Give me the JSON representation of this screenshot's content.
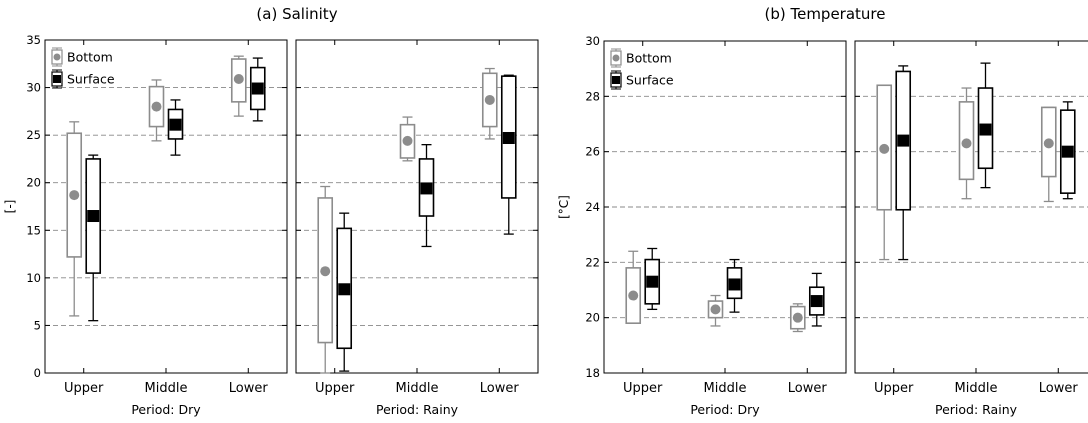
{
  "chart_data": [
    {
      "type": "box",
      "title": "(a) Salinity",
      "ylabel": "[-]",
      "ylim": [
        0,
        35
      ],
      "yticks": [
        0,
        5,
        10,
        15,
        20,
        25,
        30,
        35
      ],
      "grid": true,
      "legend_position": "top-left",
      "categories": [
        "Upper",
        "Middle",
        "Lower"
      ],
      "series_colors": {
        "Bottom": "#8c8c8c",
        "Surface": "#000000"
      },
      "panels": [
        {
          "label": "Period: Dry",
          "series": [
            {
              "name": "Bottom",
              "marker": "circle",
              "boxes": [
                {
                  "category": "Upper",
                  "min": 6.0,
                  "q1": 12.2,
                  "mean": 18.7,
                  "q3": 25.2,
                  "max": 26.4
                },
                {
                  "category": "Middle",
                  "min": 24.4,
                  "q1": 25.9,
                  "mean": 28.0,
                  "q3": 30.1,
                  "max": 30.8
                },
                {
                  "category": "Lower",
                  "min": 27.0,
                  "q1": 28.5,
                  "mean": 30.9,
                  "q3": 33.0,
                  "max": 33.3
                }
              ]
            },
            {
              "name": "Surface",
              "marker": "square",
              "boxes": [
                {
                  "category": "Upper",
                  "min": 5.5,
                  "q1": 10.5,
                  "mean": 16.5,
                  "q3": 22.5,
                  "max": 22.9
                },
                {
                  "category": "Middle",
                  "min": 22.9,
                  "q1": 24.6,
                  "mean": 26.1,
                  "q3": 27.7,
                  "max": 28.7
                },
                {
                  "category": "Lower",
                  "min": 26.5,
                  "q1": 27.7,
                  "mean": 29.9,
                  "q3": 32.1,
                  "max": 33.1
                }
              ]
            }
          ]
        },
        {
          "label": "Period: Rainy",
          "series": [
            {
              "name": "Bottom",
              "marker": "circle",
              "boxes": [
                {
                  "category": "Upper",
                  "min": 0.0,
                  "q1": 3.2,
                  "mean": 10.7,
                  "q3": 18.4,
                  "max": 19.6
                },
                {
                  "category": "Middle",
                  "min": 22.3,
                  "q1": 22.6,
                  "mean": 24.4,
                  "q3": 26.1,
                  "max": 26.9
                },
                {
                  "category": "Lower",
                  "min": 24.6,
                  "q1": 25.9,
                  "mean": 28.7,
                  "q3": 31.5,
                  "max": 32.0
                }
              ]
            },
            {
              "name": "Surface",
              "marker": "square",
              "boxes": [
                {
                  "category": "Upper",
                  "min": 0.2,
                  "q1": 2.6,
                  "mean": 8.8,
                  "q3": 15.2,
                  "max": 16.8
                },
                {
                  "category": "Middle",
                  "min": 13.3,
                  "q1": 16.5,
                  "mean": 19.4,
                  "q3": 22.5,
                  "max": 24.0
                },
                {
                  "category": "Lower",
                  "min": 14.6,
                  "q1": 18.4,
                  "mean": 24.7,
                  "q3": 31.2,
                  "max": 31.3
                }
              ]
            }
          ]
        }
      ]
    },
    {
      "type": "box",
      "title": "(b) Temperature",
      "ylabel": "[°C]",
      "ylim": [
        18,
        30
      ],
      "yticks": [
        18,
        20,
        22,
        24,
        26,
        28,
        30
      ],
      "grid": true,
      "legend_position": "top-left",
      "categories": [
        "Upper",
        "Middle",
        "Lower"
      ],
      "series_colors": {
        "Bottom": "#8c8c8c",
        "Surface": "#000000"
      },
      "panels": [
        {
          "label": "Period: Dry",
          "series": [
            {
              "name": "Bottom",
              "marker": "circle",
              "boxes": [
                {
                  "category": "Upper",
                  "min": 19.8,
                  "q1": 19.8,
                  "mean": 20.8,
                  "q3": 21.8,
                  "max": 22.4
                },
                {
                  "category": "Middle",
                  "min": 19.7,
                  "q1": 20.0,
                  "mean": 20.3,
                  "q3": 20.6,
                  "max": 20.8
                },
                {
                  "category": "Lower",
                  "min": 19.5,
                  "q1": 19.6,
                  "mean": 20.0,
                  "q3": 20.4,
                  "max": 20.5
                }
              ]
            },
            {
              "name": "Surface",
              "marker": "square",
              "boxes": [
                {
                  "category": "Upper",
                  "min": 20.3,
                  "q1": 20.5,
                  "mean": 21.3,
                  "q3": 22.1,
                  "max": 22.5
                },
                {
                  "category": "Middle",
                  "min": 20.2,
                  "q1": 20.7,
                  "mean": 21.2,
                  "q3": 21.8,
                  "max": 22.1
                },
                {
                  "category": "Lower",
                  "min": 19.7,
                  "q1": 20.1,
                  "mean": 20.6,
                  "q3": 21.1,
                  "max": 21.6
                }
              ]
            }
          ]
        },
        {
          "label": "Period: Rainy",
          "series": [
            {
              "name": "Bottom",
              "marker": "circle",
              "boxes": [
                {
                  "category": "Upper",
                  "min": 22.1,
                  "q1": 23.9,
                  "mean": 26.1,
                  "q3": 28.4,
                  "max": 28.4
                },
                {
                  "category": "Middle",
                  "min": 24.3,
                  "q1": 25.0,
                  "mean": 26.3,
                  "q3": 27.8,
                  "max": 28.3
                },
                {
                  "category": "Lower",
                  "min": 24.2,
                  "q1": 25.1,
                  "mean": 26.3,
                  "q3": 27.6,
                  "max": 27.6
                }
              ]
            },
            {
              "name": "Surface",
              "marker": "square",
              "boxes": [
                {
                  "category": "Upper",
                  "min": 22.1,
                  "q1": 23.9,
                  "mean": 26.4,
                  "q3": 28.9,
                  "max": 29.1
                },
                {
                  "category": "Middle",
                  "min": 24.7,
                  "q1": 25.4,
                  "mean": 26.8,
                  "q3": 28.3,
                  "max": 29.2
                },
                {
                  "category": "Lower",
                  "min": 24.3,
                  "q1": 24.5,
                  "mean": 26.0,
                  "q3": 27.5,
                  "max": 27.8
                }
              ]
            }
          ]
        }
      ]
    }
  ]
}
